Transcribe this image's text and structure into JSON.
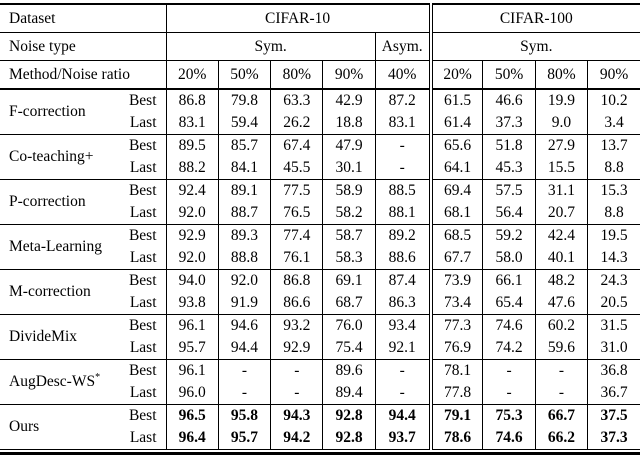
{
  "header": {
    "dataset_label": "Dataset",
    "cifar10_label": "CIFAR-10",
    "cifar100_label": "CIFAR-100",
    "noise_type_label": "Noise type",
    "sym_cifar10_label": "Sym.",
    "asym_label": "Asym.",
    "sym_cifar100_label": "Sym.",
    "method_ratio_label": "Method/Noise ratio",
    "ratios": [
      "20%",
      "50%",
      "80%",
      "90%",
      "40%",
      "20%",
      "50%",
      "80%",
      "90%"
    ]
  },
  "row_labels": {
    "best": "Best",
    "last": "Last"
  },
  "methods": [
    {
      "name": "F-correction",
      "best": [
        "86.8",
        "79.8",
        "63.3",
        "42.9",
        "87.2",
        "61.5",
        "46.6",
        "19.9",
        "10.2"
      ],
      "last": [
        "83.1",
        "59.4",
        "26.2",
        "18.8",
        "83.1",
        "61.4",
        "37.3",
        "9.0",
        "3.4"
      ]
    },
    {
      "name": "Co-teaching+",
      "best": [
        "89.5",
        "85.7",
        "67.4",
        "47.9",
        "-",
        "65.6",
        "51.8",
        "27.9",
        "13.7"
      ],
      "last": [
        "88.2",
        "84.1",
        "45.5",
        "30.1",
        "-",
        "64.1",
        "45.3",
        "15.5",
        "8.8"
      ]
    },
    {
      "name": "P-correction",
      "best": [
        "92.4",
        "89.1",
        "77.5",
        "58.9",
        "88.5",
        "69.4",
        "57.5",
        "31.1",
        "15.3"
      ],
      "last": [
        "92.0",
        "88.7",
        "76.5",
        "58.2",
        "88.1",
        "68.1",
        "56.4",
        "20.7",
        "8.8"
      ]
    },
    {
      "name": "Meta-Learning",
      "best": [
        "92.9",
        "89.3",
        "77.4",
        "58.7",
        "89.2",
        "68.5",
        "59.2",
        "42.4",
        "19.5"
      ],
      "last": [
        "92.0",
        "88.8",
        "76.1",
        "58.3",
        "88.6",
        "67.7",
        "58.0",
        "40.1",
        "14.3"
      ]
    },
    {
      "name": "M-correction",
      "best": [
        "94.0",
        "92.0",
        "86.8",
        "69.1",
        "87.4",
        "73.9",
        "66.1",
        "48.2",
        "24.3"
      ],
      "last": [
        "93.8",
        "91.9",
        "86.6",
        "68.7",
        "86.3",
        "73.4",
        "65.4",
        "47.6",
        "20.5"
      ]
    },
    {
      "name": "DivideMix",
      "best": [
        "96.1",
        "94.6",
        "93.2",
        "76.0",
        "93.4",
        "77.3",
        "74.6",
        "60.2",
        "31.5"
      ],
      "last": [
        "95.7",
        "94.4",
        "92.9",
        "75.4",
        "92.1",
        "76.9",
        "74.2",
        "59.6",
        "31.0"
      ]
    },
    {
      "name": "AugDesc-WS",
      "sup": "*",
      "best": [
        "96.1",
        "-",
        "-",
        "89.6",
        "-",
        "78.1",
        "-",
        "-",
        "36.8"
      ],
      "last": [
        "96.0",
        "-",
        "-",
        "89.4",
        "-",
        "77.8",
        "-",
        "-",
        "36.7"
      ]
    },
    {
      "name": "Ours",
      "emphasized": true,
      "best": [
        "96.5",
        "95.8",
        "94.3",
        "92.8",
        "94.4",
        "79.1",
        "75.3",
        "66.7",
        "37.5"
      ],
      "last": [
        "96.4",
        "95.7",
        "94.2",
        "92.8",
        "93.7",
        "78.6",
        "74.6",
        "66.2",
        "37.3"
      ]
    }
  ]
}
